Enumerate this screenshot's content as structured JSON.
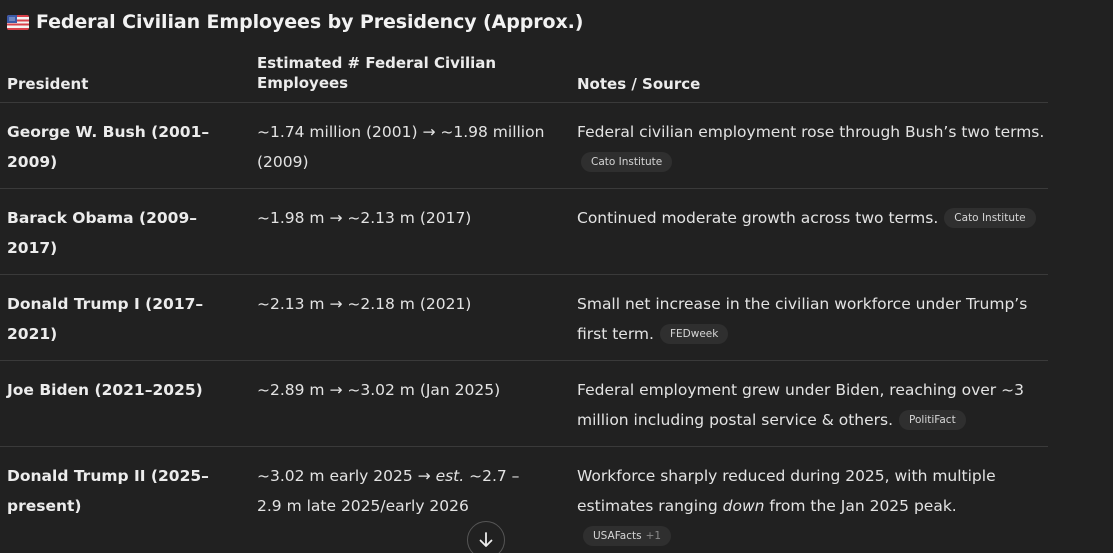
{
  "heading": {
    "flag_icon": "us-flag-icon",
    "title": "Federal Civilian Employees by Presidency (Approx.)"
  },
  "table": {
    "headers": {
      "president": "President",
      "employees": "Estimated # Federal Civilian Employees",
      "notes": "Notes / Source"
    },
    "rows": [
      {
        "president": "George W. Bush (2001–2009)",
        "employees": "~1.74 million (2001) → ~1.98 million (2009)",
        "notes": "Federal civilian employment rose through Bush’s two terms.",
        "source": "Cato Institute",
        "source_extra": ""
      },
      {
        "president": "Barack Obama (2009–2017)",
        "employees": "~1.98 m → ~2.13 m (2017)",
        "notes": "Continued moderate growth across two terms.",
        "source": "Cato Institute",
        "source_extra": ""
      },
      {
        "president": "Donald Trump I (2017–2021)",
        "employees": "~2.13 m → ~2.18 m (2021)",
        "notes": "Small net increase in the civilian workforce under Trump’s first term.",
        "source": "FEDweek",
        "source_extra": ""
      },
      {
        "president": "Joe Biden (2021–2025)",
        "employees": "~2.89 m → ~3.02 m (Jan 2025)",
        "notes": "Federal employment grew under Biden, reaching over ~3 million including postal service & others.",
        "source": "PolitiFact",
        "source_extra": ""
      },
      {
        "president": "Donald Trump II (2025–present)",
        "employees_pre": "~3.02 m early 2025 → ",
        "employees_em": "est.",
        "employees_post": " ~2.7 – 2.9 m late 2025/early 2026",
        "notes_pre": "Workforce sharply reduced during 2025, with multiple estimates ranging ",
        "notes_em": "down",
        "notes_post": " from the Jan 2025 peak.",
        "source": "USAFacts",
        "source_extra": "+1"
      }
    ]
  },
  "scroll_button": {
    "icon": "arrow-down-icon"
  },
  "colors": {
    "background": "#212121",
    "text": "#ececec",
    "pill_bg": "#2f2f2f",
    "divider": "#3a3a3a"
  }
}
